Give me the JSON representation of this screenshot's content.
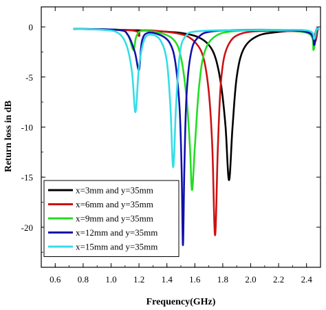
{
  "chart_data": {
    "type": "line",
    "title": "",
    "xlabel": "Frequency(GHz)",
    "ylabel": "Return loss in dB",
    "xlim": [
      0.5,
      2.5
    ],
    "ylim": [
      -24,
      2
    ],
    "xticks": [
      0.6,
      0.8,
      1.0,
      1.2,
      1.4,
      1.6,
      1.8,
      2.0,
      2.2,
      2.4
    ],
    "xtick_labels": [
      "0.6",
      "0.8",
      "1.0",
      "1.2",
      "1.4",
      "1.6",
      "1.8",
      "2.0",
      "2.2",
      "2.4"
    ],
    "yticks": [
      0,
      -5,
      -10,
      -15,
      -20
    ],
    "ytick_labels": [
      "0",
      "-5",
      "-10",
      "-15",
      "-20"
    ],
    "grid": false,
    "legend_position": "bottom-left",
    "series": [
      {
        "name": "x=3mm and y=35mm",
        "color": "#000000",
        "points": [
          [
            0.73,
            -0.2
          ],
          [
            1.1,
            -0.3
          ],
          [
            1.3,
            -0.4
          ],
          [
            1.5,
            -0.6
          ],
          [
            1.62,
            -1.0
          ],
          [
            1.7,
            -1.8
          ],
          [
            1.75,
            -3.2
          ],
          [
            1.79,
            -6.0
          ],
          [
            1.82,
            -10.0
          ],
          [
            1.845,
            -15.3
          ],
          [
            1.87,
            -10.0
          ],
          [
            1.9,
            -5.0
          ],
          [
            1.95,
            -2.2
          ],
          [
            2.05,
            -0.9
          ],
          [
            2.2,
            -0.5
          ],
          [
            2.35,
            -0.4
          ],
          [
            2.42,
            -0.6
          ],
          [
            2.45,
            -1.2
          ],
          [
            2.47,
            -0.3
          ],
          [
            2.49,
            -0.2
          ]
        ]
      },
      {
        "name": "x=6mm and y=35mm",
        "color": "#cc1111",
        "points": [
          [
            0.73,
            -0.2
          ],
          [
            1.15,
            -0.35
          ],
          [
            1.2,
            -0.9
          ],
          [
            1.22,
            -0.35
          ],
          [
            1.4,
            -0.5
          ],
          [
            1.52,
            -0.8
          ],
          [
            1.6,
            -1.5
          ],
          [
            1.66,
            -3.0
          ],
          [
            1.7,
            -6.5
          ],
          [
            1.725,
            -12.0
          ],
          [
            1.745,
            -20.8
          ],
          [
            1.765,
            -12.0
          ],
          [
            1.79,
            -5.0
          ],
          [
            1.84,
            -1.8
          ],
          [
            1.95,
            -0.6
          ],
          [
            2.2,
            -0.4
          ],
          [
            2.42,
            -0.6
          ],
          [
            2.46,
            -1.5
          ],
          [
            2.48,
            -0.3
          ]
        ]
      },
      {
        "name": "x=9mm and y=35mm",
        "color": "#22dd22",
        "points": [
          [
            0.73,
            -0.2
          ],
          [
            1.05,
            -0.3
          ],
          [
            1.12,
            -0.8
          ],
          [
            1.16,
            -2.3
          ],
          [
            1.18,
            -1.0
          ],
          [
            1.22,
            -0.4
          ],
          [
            1.35,
            -0.6
          ],
          [
            1.45,
            -1.3
          ],
          [
            1.5,
            -3.0
          ],
          [
            1.54,
            -7.0
          ],
          [
            1.565,
            -12.0
          ],
          [
            1.58,
            -16.3
          ],
          [
            1.6,
            -12.0
          ],
          [
            1.63,
            -6.0
          ],
          [
            1.67,
            -2.5
          ],
          [
            1.75,
            -0.9
          ],
          [
            1.9,
            -0.4
          ],
          [
            2.2,
            -0.35
          ],
          [
            2.42,
            -0.7
          ],
          [
            2.45,
            -2.3
          ],
          [
            2.47,
            -0.4
          ],
          [
            2.49,
            -0.2
          ]
        ]
      },
      {
        "name": "x=12mm and y=35mm",
        "color": "#1111aa",
        "points": [
          [
            0.73,
            -0.2
          ],
          [
            1.05,
            -0.3
          ],
          [
            1.12,
            -0.8
          ],
          [
            1.17,
            -2.5
          ],
          [
            1.2,
            -4.3
          ],
          [
            1.22,
            -1.5
          ],
          [
            1.26,
            -0.6
          ],
          [
            1.35,
            -0.8
          ],
          [
            1.42,
            -1.6
          ],
          [
            1.46,
            -3.5
          ],
          [
            1.49,
            -8.0
          ],
          [
            1.505,
            -14.0
          ],
          [
            1.515,
            -21.8
          ],
          [
            1.525,
            -14.0
          ],
          [
            1.54,
            -7.0
          ],
          [
            1.57,
            -2.8
          ],
          [
            1.62,
            -1.1
          ],
          [
            1.75,
            -0.4
          ],
          [
            2.2,
            -0.3
          ],
          [
            2.42,
            -0.6
          ],
          [
            2.455,
            -1.8
          ],
          [
            2.47,
            -0.3
          ],
          [
            2.49,
            -0.2
          ]
        ]
      },
      {
        "name": "x=15mm and y=35mm",
        "color": "#33dde8",
        "points": [
          [
            0.73,
            -0.2
          ],
          [
            0.95,
            -0.3
          ],
          [
            1.05,
            -0.6
          ],
          [
            1.11,
            -1.8
          ],
          [
            1.15,
            -4.5
          ],
          [
            1.175,
            -8.5
          ],
          [
            1.2,
            -4.0
          ],
          [
            1.24,
            -1.2
          ],
          [
            1.3,
            -0.8
          ],
          [
            1.36,
            -1.5
          ],
          [
            1.4,
            -3.5
          ],
          [
            1.425,
            -8.0
          ],
          [
            1.445,
            -14.0
          ],
          [
            1.465,
            -8.0
          ],
          [
            1.49,
            -3.0
          ],
          [
            1.53,
            -1.0
          ],
          [
            1.65,
            -0.4
          ],
          [
            2.2,
            -0.3
          ],
          [
            2.42,
            -0.4
          ],
          [
            2.455,
            -1.2
          ],
          [
            2.47,
            -0.3
          ],
          [
            2.49,
            -0.2
          ]
        ]
      }
    ]
  }
}
